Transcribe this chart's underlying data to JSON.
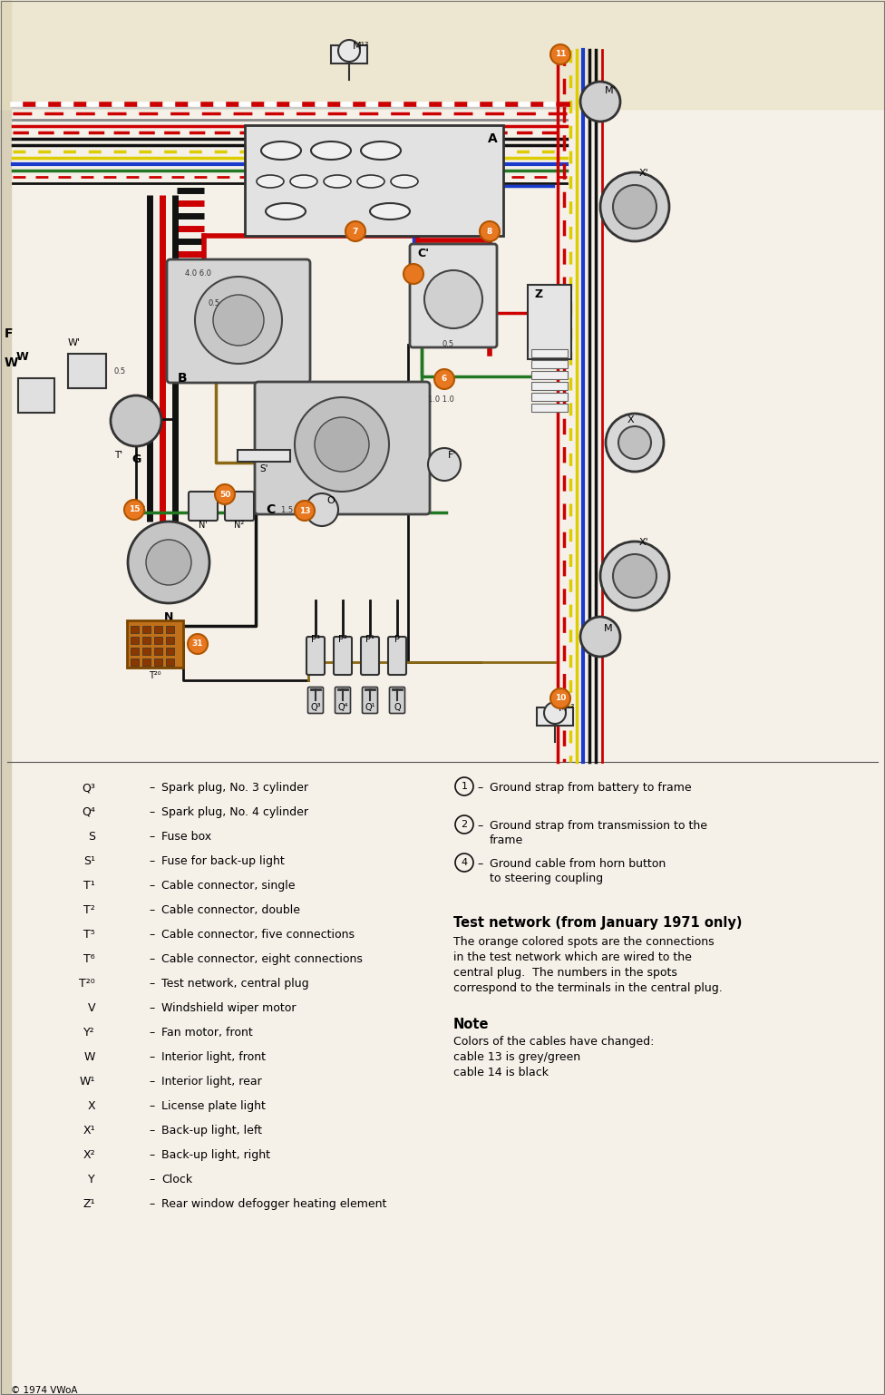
{
  "bg_color": "#f5f0e8",
  "fig_width": 9.76,
  "fig_height": 15.38,
  "legend_items_left": [
    [
      "Q³",
      "Spark plug, No. 3 cylinder"
    ],
    [
      "Q⁴",
      "Spark plug, No. 4 cylinder"
    ],
    [
      "S",
      "Fuse box"
    ],
    [
      "S¹",
      "Fuse for back-up light"
    ],
    [
      "T¹",
      "Cable connector, single"
    ],
    [
      "T²",
      "Cable connector, double"
    ],
    [
      "T⁵",
      "Cable connector, five connections"
    ],
    [
      "T⁶",
      "Cable connector, eight connections"
    ],
    [
      "T²⁰",
      "Test network, central plug"
    ],
    [
      "V",
      "Windshield wiper motor"
    ],
    [
      "Y²",
      "Fan motor, front"
    ],
    [
      "W",
      "Interior light, front"
    ],
    [
      "W¹",
      "Interior light, rear"
    ],
    [
      "X",
      "License plate light"
    ],
    [
      "X¹",
      "Back-up light, left"
    ],
    [
      "X²",
      "Back-up light, right"
    ],
    [
      "Y",
      "Clock"
    ],
    [
      "Z¹",
      "Rear window defogger heating element"
    ]
  ],
  "legend_items_right": [
    [
      "1",
      "Ground strap from battery to frame"
    ],
    [
      "2",
      "Ground strap from transmission to the\nframe"
    ],
    [
      "4",
      "Ground cable from horn button\nto steering coupling"
    ]
  ],
  "test_network_title": "Test network (from January 1971 only)",
  "test_network_lines": [
    "The orange colored spots are the connections",
    "in the test network which are wired to the",
    "central plug.  The numbers in the spots",
    "correspond to the terminals in the central plug."
  ],
  "note_title": "Note",
  "note_lines": [
    "Colors of the cables have changed:",
    "cable 13 is grey/green",
    "cable 14 is black"
  ],
  "copyright": "© 1974 VWoA"
}
